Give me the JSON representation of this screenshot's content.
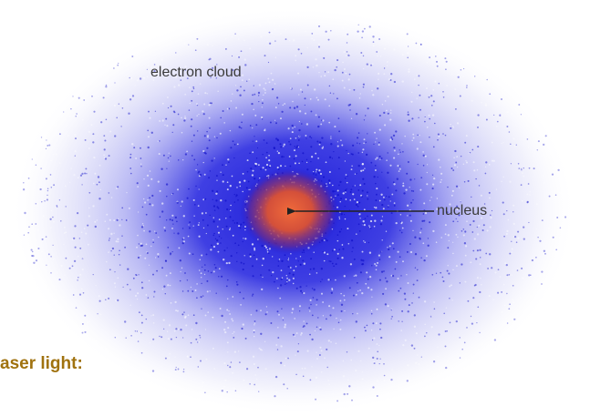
{
  "labels": {
    "cloud": "electron cloud",
    "nucleus": "nucleus"
  },
  "caption": "aser light:"
}
